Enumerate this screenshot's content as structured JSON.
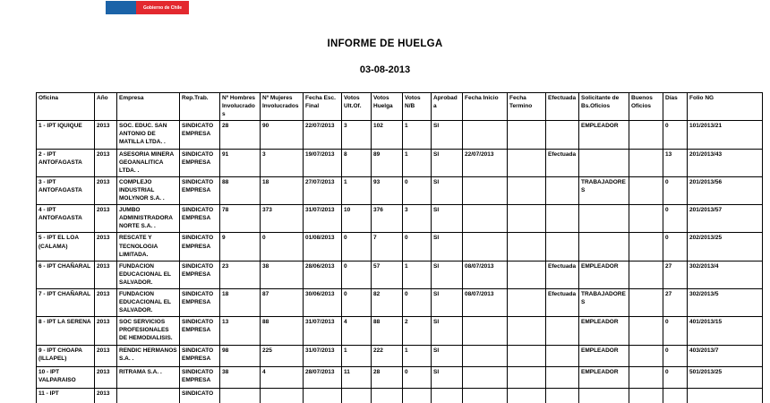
{
  "logo": {
    "text": "Gobierno de Chile",
    "blue_color": "#1b63a8",
    "red_color": "#e3292f"
  },
  "title": "INFORME DE HUELGA",
  "report_date": "03-08-2013",
  "table": {
    "columns": [
      "Oficina",
      "Año",
      "Empresa",
      "Rep.Trab.",
      "Nº Hombres Involucrados",
      "Nº Mujeres Involucrados",
      "Fecha Esc. Final",
      "Votos Ult.Of.",
      "Votos Huelga",
      "Votos N/B",
      "Aprobada",
      "Fecha Inicio",
      "Fecha Termino",
      "Efectuada",
      "Solicitante de Bs.Oficios",
      "Buenos Oficios",
      "Días",
      "Folio NG"
    ],
    "rows": [
      [
        "1 - IPT IQUIQUE",
        "2013",
        "SOC. EDUC. SAN ANTONIO DE MATILLA LTDA. .",
        "SINDICATO EMPRESA",
        "28",
        "90",
        "22/07/2013",
        "3",
        "102",
        "1",
        "SI",
        "",
        "",
        "",
        "EMPLEADOR",
        "",
        "0",
        "101/2013/21"
      ],
      [
        "2 - IPT ANTOFAGASTA",
        "2013",
        "ASESORIA MINERA GEOANALITICA LTDA. .",
        "SINDICATO EMPRESA",
        "91",
        "3",
        "19/07/2013",
        "8",
        "89",
        "1",
        "SI",
        "22/07/2013",
        "",
        "Efectuada",
        "",
        "",
        "13",
        "201/2013/43"
      ],
      [
        "3 - IPT ANTOFAGASTA",
        "2013",
        "COMPLEJO INDUSTRIAL MOLYNOR S.A. .",
        "SINDICATO EMPRESA",
        "88",
        "18",
        "27/07/2013",
        "1",
        "93",
        "0",
        "SI",
        "",
        "",
        "",
        "TRABAJADORES",
        "",
        "0",
        "201/2013/56"
      ],
      [
        "4 - IPT ANTOFAGASTA",
        "2013",
        "JUMBO ADMINISTRADORA NORTE S.A. .",
        "SINDICATO EMPRESA",
        "78",
        "373",
        "31/07/2013",
        "10",
        "376",
        "3",
        "SI",
        "",
        "",
        "",
        "",
        "",
        "0",
        "201/2013/57"
      ],
      [
        "5 - IPT EL LOA (CALAMA)",
        "2013",
        "RESCATE Y TECNOLOGIA LIMITADA.",
        "SINDICATO EMPRESA",
        "9",
        "0",
        "01/08/2013",
        "0",
        "7",
        "0",
        "SI",
        "",
        "",
        "",
        "",
        "",
        "0",
        "202/2013/25"
      ],
      [
        "6 - IPT CHAÑARAL",
        "2013",
        "FUNDACION EDUCACIONAL EL SALVADOR.",
        "SINDICATO EMPRESA",
        "23",
        "38",
        "28/06/2013",
        "0",
        "57",
        "1",
        "SI",
        "08/07/2013",
        "",
        "Efectuada",
        "EMPLEADOR",
        "",
        "27",
        "302/2013/4"
      ],
      [
        "7 - IPT CHAÑARAL",
        "2013",
        "FUNDACION EDUCACIONAL EL SALVADOR.",
        "SINDICATO EMPRESA",
        "18",
        "87",
        "30/06/2013",
        "0",
        "82",
        "0",
        "SI",
        "08/07/2013",
        "",
        "Efectuada",
        "TRABAJADORES",
        "",
        "27",
        "302/2013/5"
      ],
      [
        "8 - IPT LA SERENA",
        "2013",
        "SOC SERVICIOS PROFESIONALES DE HEMODIALISIS.",
        "SINDICATO EMPRESA",
        "13",
        "88",
        "31/07/2013",
        "4",
        "88",
        "2",
        "SI",
        "",
        "",
        "",
        "EMPLEADOR",
        "",
        "0",
        "401/2013/15"
      ],
      [
        "9 - IPT CHOAPA (ILLAPEL)",
        "2013",
        "RENDIC HERMANOS S.A. .",
        "SINDICATO EMPRESA",
        "98",
        "225",
        "31/07/2013",
        "1",
        "222",
        "1",
        "SI",
        "",
        "",
        "",
        "EMPLEADOR",
        "",
        "0",
        "403/2013/7"
      ],
      [
        "10 - IPT VALPARAISO",
        "2013",
        "RITRAMA S.A. .",
        "SINDICATO EMPRESA",
        "38",
        "4",
        "28/07/2013",
        "11",
        "28",
        "0",
        "SI",
        "",
        "",
        "",
        "EMPLEADOR",
        "",
        "0",
        "501/2013/25"
      ],
      [
        "11 - IPT",
        "2013",
        "",
        "SINDICATO",
        "",
        "",
        "",
        "",
        "",
        "",
        "",
        "",
        "",
        "",
        "",
        "",
        "",
        ""
      ]
    ]
  }
}
